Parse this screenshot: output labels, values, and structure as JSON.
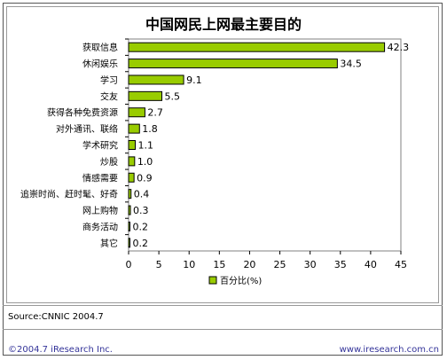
{
  "chart_data": {
    "type": "bar",
    "orientation": "horizontal",
    "title": "中国网民上网最主要目的",
    "categories": [
      "获取信息",
      "休闲娱乐",
      "学习",
      "交友",
      "获得各种免费资源",
      "对外通讯、联络",
      "学术研究",
      "炒股",
      "情感需要",
      "追崇时尚、赶时髦、好奇",
      "网上购物",
      "商务活动",
      "其它"
    ],
    "series": [
      {
        "name": "百分比(%)",
        "values": [
          42.3,
          34.5,
          9.1,
          5.5,
          2.7,
          1.8,
          1.1,
          1.0,
          0.9,
          0.4,
          0.3,
          0.2,
          0.2
        ]
      }
    ],
    "value_labels": [
      "42.3",
      "34.5",
      "9.1",
      "5.5",
      "2.7",
      "1.8",
      "1.1",
      "1.0",
      "0.9",
      "0.4",
      "0.3",
      "0.2",
      "0.2"
    ],
    "xlim": [
      0,
      45
    ],
    "xticks": [
      0,
      5,
      10,
      15,
      20,
      25,
      30,
      35,
      40,
      45
    ],
    "legend_position": "bottom",
    "grid": false,
    "bar_color": "#99cc00"
  },
  "source": "Source:CNNIC 2004.7",
  "copyright": "©2004.7 iResearch Inc.",
  "url": "www.iresearch.com.cn"
}
